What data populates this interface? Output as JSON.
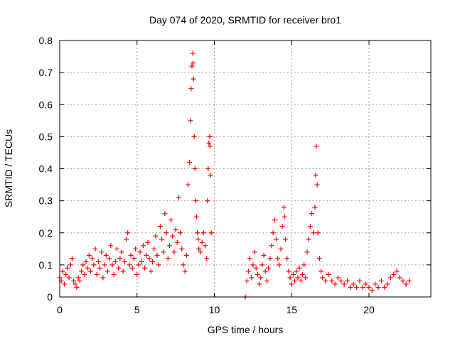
{
  "chart_data": {
    "type": "scatter",
    "title": "Day 074 of 2020, SRMTID for receiver bro1",
    "xlabel": "GPS time / hours",
    "ylabel": "SRMTID / TECUs",
    "xlim": [
      0,
      24
    ],
    "ylim": [
      0,
      0.8
    ],
    "xticks": [
      0,
      5,
      10,
      15,
      20
    ],
    "yticks": [
      0,
      0.1,
      0.2,
      0.3,
      0.4,
      0.5,
      0.6,
      0.7,
      0.8
    ],
    "xtick_labels": [
      "0",
      "5",
      "10",
      "15",
      "20"
    ],
    "ytick_labels": [
      "0",
      "0.1",
      "0.2",
      "0.3",
      "0.4",
      "0.5",
      "0.6",
      "0.7",
      "0.8"
    ],
    "grid": true,
    "marker": "+",
    "color": "#ff0000",
    "series": [
      {
        "name": "bro1",
        "points": [
          [
            0.0,
            0.06
          ],
          [
            0.1,
            0.05
          ],
          [
            0.2,
            0.08
          ],
          [
            0.3,
            0.04
          ],
          [
            0.4,
            0.07
          ],
          [
            0.5,
            0.09
          ],
          [
            0.6,
            0.06
          ],
          [
            0.7,
            0.1
          ],
          [
            0.8,
            0.12
          ],
          [
            0.9,
            0.05
          ],
          [
            1.0,
            0.04
          ],
          [
            1.1,
            0.03
          ],
          [
            1.2,
            0.06
          ],
          [
            1.3,
            0.05
          ],
          [
            1.4,
            0.08
          ],
          [
            1.5,
            0.1
          ],
          [
            1.6,
            0.07
          ],
          [
            1.7,
            0.11
          ],
          [
            1.8,
            0.09
          ],
          [
            1.9,
            0.13
          ],
          [
            2.0,
            0.08
          ],
          [
            2.1,
            0.12
          ],
          [
            2.2,
            0.1
          ],
          [
            2.3,
            0.15
          ],
          [
            2.4,
            0.07
          ],
          [
            2.5,
            0.11
          ],
          [
            2.6,
            0.09
          ],
          [
            2.7,
            0.14
          ],
          [
            2.8,
            0.06
          ],
          [
            2.9,
            0.1
          ],
          [
            3.0,
            0.13
          ],
          [
            3.1,
            0.08
          ],
          [
            3.2,
            0.12
          ],
          [
            3.3,
            0.16
          ],
          [
            3.4,
            0.1
          ],
          [
            3.5,
            0.07
          ],
          [
            3.6,
            0.11
          ],
          [
            3.7,
            0.15
          ],
          [
            3.8,
            0.09
          ],
          [
            3.9,
            0.12
          ],
          [
            4.0,
            0.14
          ],
          [
            4.1,
            0.08
          ],
          [
            4.2,
            0.11
          ],
          [
            4.3,
            0.18
          ],
          [
            4.4,
            0.2
          ],
          [
            4.5,
            0.1
          ],
          [
            4.6,
            0.13
          ],
          [
            4.7,
            0.09
          ],
          [
            4.8,
            0.12
          ],
          [
            4.9,
            0.15
          ],
          [
            5.0,
            0.07
          ],
          [
            5.1,
            0.1
          ],
          [
            5.2,
            0.14
          ],
          [
            5.3,
            0.11
          ],
          [
            5.4,
            0.16
          ],
          [
            5.5,
            0.09
          ],
          [
            5.6,
            0.13
          ],
          [
            5.7,
            0.17
          ],
          [
            5.8,
            0.12
          ],
          [
            5.9,
            0.08
          ],
          [
            6.0,
            0.11
          ],
          [
            6.1,
            0.15
          ],
          [
            6.2,
            0.19
          ],
          [
            6.3,
            0.13
          ],
          [
            6.4,
            0.1
          ],
          [
            6.5,
            0.22
          ],
          [
            6.6,
            0.18
          ],
          [
            6.7,
            0.14
          ],
          [
            6.8,
            0.26
          ],
          [
            6.9,
            0.2
          ],
          [
            7.0,
            0.12
          ],
          [
            7.1,
            0.16
          ],
          [
            7.2,
            0.24
          ],
          [
            7.3,
            0.19
          ],
          [
            7.4,
            0.14
          ],
          [
            7.5,
            0.21
          ],
          [
            7.6,
            0.17
          ],
          [
            7.7,
            0.31
          ],
          [
            7.8,
            0.2
          ],
          [
            7.9,
            0.15
          ],
          [
            8.0,
            0.1
          ],
          [
            8.1,
            0.08
          ],
          [
            8.2,
            0.13
          ],
          [
            8.3,
            0.35
          ],
          [
            8.4,
            0.42
          ],
          [
            8.45,
            0.55
          ],
          [
            8.5,
            0.65
          ],
          [
            8.55,
            0.72
          ],
          [
            8.6,
            0.76
          ],
          [
            8.62,
            0.73
          ],
          [
            8.65,
            0.68
          ],
          [
            8.7,
            0.5
          ],
          [
            8.75,
            0.4
          ],
          [
            8.8,
            0.3
          ],
          [
            8.85,
            0.25
          ],
          [
            8.9,
            0.2
          ],
          [
            8.95,
            0.18
          ],
          [
            9.0,
            0.15
          ],
          [
            9.1,
            0.14
          ],
          [
            9.2,
            0.17
          ],
          [
            9.3,
            0.2
          ],
          [
            9.4,
            0.16
          ],
          [
            9.5,
            0.12
          ],
          [
            9.55,
            0.3
          ],
          [
            9.6,
            0.4
          ],
          [
            9.65,
            0.48
          ],
          [
            9.7,
            0.5
          ],
          [
            9.72,
            0.47
          ],
          [
            9.75,
            0.38
          ],
          [
            9.8,
            0.2
          ],
          [
            12.0,
            0.0
          ],
          [
            12.1,
            0.05
          ],
          [
            12.2,
            0.08
          ],
          [
            12.3,
            0.12
          ],
          [
            12.4,
            0.06
          ],
          [
            12.5,
            0.1
          ],
          [
            12.6,
            0.14
          ],
          [
            12.7,
            0.09
          ],
          [
            12.8,
            0.07
          ],
          [
            12.9,
            0.04
          ],
          [
            13.0,
            0.06
          ],
          [
            13.1,
            0.1
          ],
          [
            13.2,
            0.13
          ],
          [
            13.3,
            0.08
          ],
          [
            13.4,
            0.05
          ],
          [
            13.5,
            0.09
          ],
          [
            13.6,
            0.12
          ],
          [
            13.7,
            0.16
          ],
          [
            13.8,
            0.2
          ],
          [
            13.9,
            0.24
          ],
          [
            14.0,
            0.18
          ],
          [
            14.1,
            0.12
          ],
          [
            14.2,
            0.1
          ],
          [
            14.3,
            0.15
          ],
          [
            14.4,
            0.22
          ],
          [
            14.5,
            0.28
          ],
          [
            14.55,
            0.25
          ],
          [
            14.6,
            0.18
          ],
          [
            14.7,
            0.12
          ],
          [
            14.8,
            0.08
          ],
          [
            14.9,
            0.06
          ],
          [
            15.0,
            0.04
          ],
          [
            15.1,
            0.07
          ],
          [
            15.2,
            0.05
          ],
          [
            15.3,
            0.08
          ],
          [
            15.4,
            0.06
          ],
          [
            15.5,
            0.09
          ],
          [
            15.6,
            0.05
          ],
          [
            15.7,
            0.07
          ],
          [
            15.8,
            0.1
          ],
          [
            15.9,
            0.06
          ],
          [
            16.0,
            0.14
          ],
          [
            16.1,
            0.18
          ],
          [
            16.2,
            0.22
          ],
          [
            16.3,
            0.26
          ],
          [
            16.4,
            0.2
          ],
          [
            16.5,
            0.28
          ],
          [
            16.55,
            0.38
          ],
          [
            16.6,
            0.47
          ],
          [
            16.65,
            0.35
          ],
          [
            16.7,
            0.2
          ],
          [
            16.8,
            0.12
          ],
          [
            16.9,
            0.08
          ],
          [
            17.0,
            0.06
          ],
          [
            17.2,
            0.05
          ],
          [
            17.4,
            0.07
          ],
          [
            17.6,
            0.05
          ],
          [
            17.8,
            0.04
          ],
          [
            18.0,
            0.06
          ],
          [
            18.2,
            0.05
          ],
          [
            18.4,
            0.04
          ],
          [
            18.6,
            0.05
          ],
          [
            18.8,
            0.03
          ],
          [
            19.0,
            0.04
          ],
          [
            19.2,
            0.03
          ],
          [
            19.4,
            0.05
          ],
          [
            19.6,
            0.03
          ],
          [
            19.8,
            0.04
          ],
          [
            20.0,
            0.03
          ],
          [
            20.2,
            0.02
          ],
          [
            20.4,
            0.04
          ],
          [
            20.6,
            0.03
          ],
          [
            20.8,
            0.05
          ],
          [
            21.0,
            0.03
          ],
          [
            21.2,
            0.04
          ],
          [
            21.4,
            0.06
          ],
          [
            21.6,
            0.07
          ],
          [
            21.8,
            0.08
          ],
          [
            22.0,
            0.06
          ],
          [
            22.2,
            0.05
          ],
          [
            22.4,
            0.04
          ],
          [
            22.6,
            0.05
          ]
        ]
      }
    ]
  }
}
